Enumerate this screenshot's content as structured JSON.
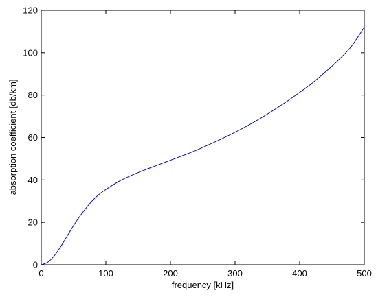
{
  "chart_data": {
    "type": "line",
    "title": "",
    "xlabel": "frequency [kHz]",
    "ylabel": "absorption coefficient [db/km]",
    "xlim": [
      0,
      500
    ],
    "ylim": [
      0,
      120
    ],
    "xticks": [
      0,
      100,
      200,
      300,
      400,
      500
    ],
    "yticks": [
      0,
      20,
      40,
      60,
      80,
      100,
      120
    ],
    "grid": false,
    "legend": "none",
    "series": [
      {
        "color": "#0000ff",
        "x": [
          0,
          10,
          20,
          30,
          40,
          50,
          60,
          70,
          80,
          90,
          100,
          120,
          140,
          160,
          180,
          200,
          220,
          240,
          260,
          280,
          300,
          320,
          340,
          360,
          380,
          400,
          420,
          440,
          460,
          480,
          500
        ],
        "y": [
          0,
          1.2,
          4.2,
          8.5,
          13.5,
          18.5,
          23,
          27,
          30.5,
          33.3,
          35.5,
          39.3,
          42.2,
          44.7,
          47,
          49.3,
          51.6,
          54,
          56.7,
          59.5,
          62.5,
          65.7,
          69.2,
          73,
          77,
          81.3,
          85.8,
          91,
          96.5,
          103,
          112
        ]
      }
    ]
  }
}
